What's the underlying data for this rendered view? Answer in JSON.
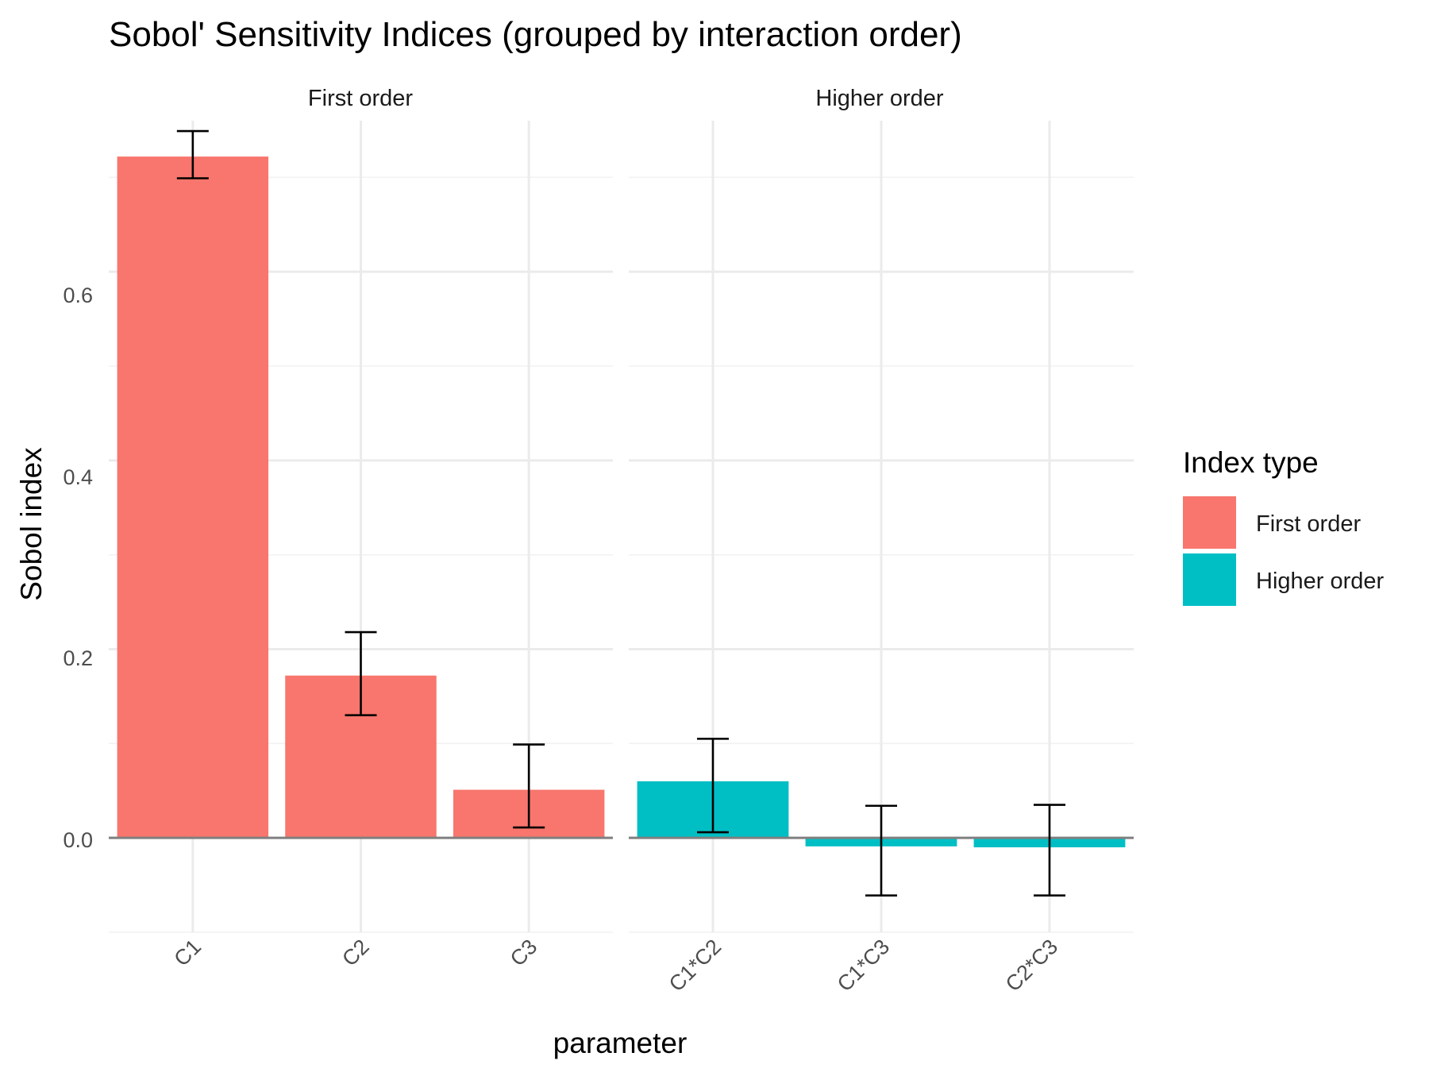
{
  "chart_data": {
    "type": "bar",
    "title": "Sobol' Sensitivity Indices (grouped by interaction order)",
    "xlabel": "parameter",
    "ylabel": "Sobol index",
    "ylim": [
      -0.1,
      0.76
    ],
    "y_ticks": [
      0.0,
      0.2,
      0.4,
      0.6
    ],
    "y_tick_labels": [
      "0.0",
      "0.2",
      "0.4",
      "0.6"
    ],
    "grid": true,
    "legend": {
      "title": "Index type",
      "placement": "right",
      "entries": [
        {
          "label": "First order",
          "color": "#F8766D"
        },
        {
          "label": "Higher order",
          "color": "#00BFC4"
        }
      ]
    },
    "panels": [
      {
        "strip": "First order",
        "color": "#F8766D",
        "categories": [
          "C1",
          "C2",
          "C3"
        ],
        "values": [
          0.722,
          0.172,
          0.051
        ],
        "err_low": [
          0.699,
          0.13,
          0.011
        ],
        "err_high": [
          0.749,
          0.218,
          0.099
        ]
      },
      {
        "strip": "Higher order",
        "color": "#00BFC4",
        "categories": [
          "C1*C2",
          "C1*C3",
          "C2*C3"
        ],
        "values": [
          0.06,
          -0.009,
          -0.01
        ],
        "err_low": [
          0.006,
          -0.061,
          -0.061
        ],
        "err_high": [
          0.105,
          0.034,
          0.035
        ]
      }
    ]
  }
}
